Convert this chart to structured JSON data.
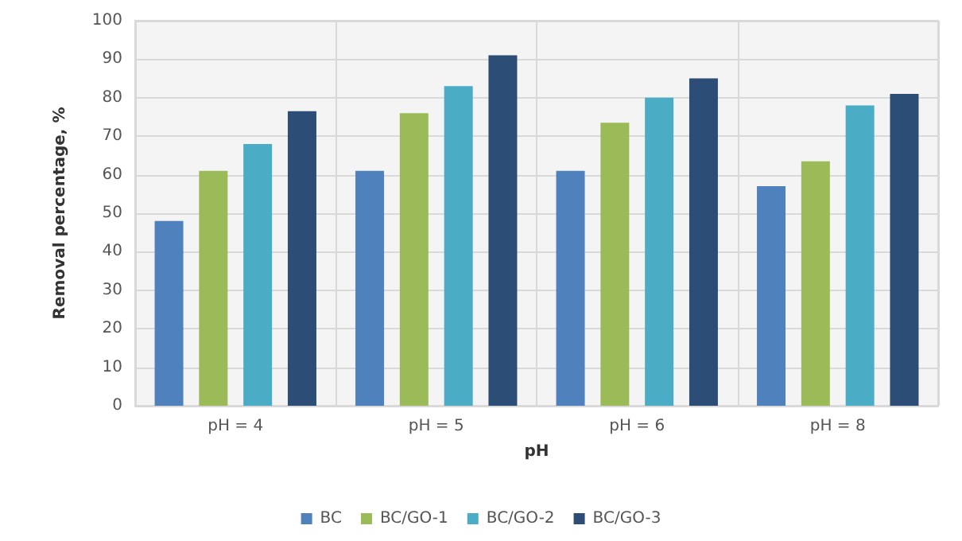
{
  "chart_data": {
    "type": "bar",
    "xlabel": "pH",
    "ylabel": "Removal percentage, %",
    "categories": [
      "pH = 4",
      "pH = 5",
      "pH = 6",
      "pH = 8"
    ],
    "series": [
      {
        "name": "BC",
        "color": "#4f81bd",
        "values": [
          48,
          61,
          61,
          57
        ]
      },
      {
        "name": "BC/GO-1",
        "color": "#9bbb59",
        "values": [
          61,
          76,
          73.5,
          63.5
        ]
      },
      {
        "name": "BC/GO-2",
        "color": "#4bacc6",
        "values": [
          68,
          83,
          80,
          78
        ]
      },
      {
        "name": "BC/GO-3",
        "color": "#2c4d75",
        "values": [
          76.5,
          91,
          85,
          81
        ]
      }
    ],
    "ylim": [
      0,
      100
    ],
    "yticks": [
      0,
      10,
      20,
      30,
      40,
      50,
      60,
      70,
      80,
      90,
      100
    ],
    "grid": true,
    "legend": "bottom"
  }
}
